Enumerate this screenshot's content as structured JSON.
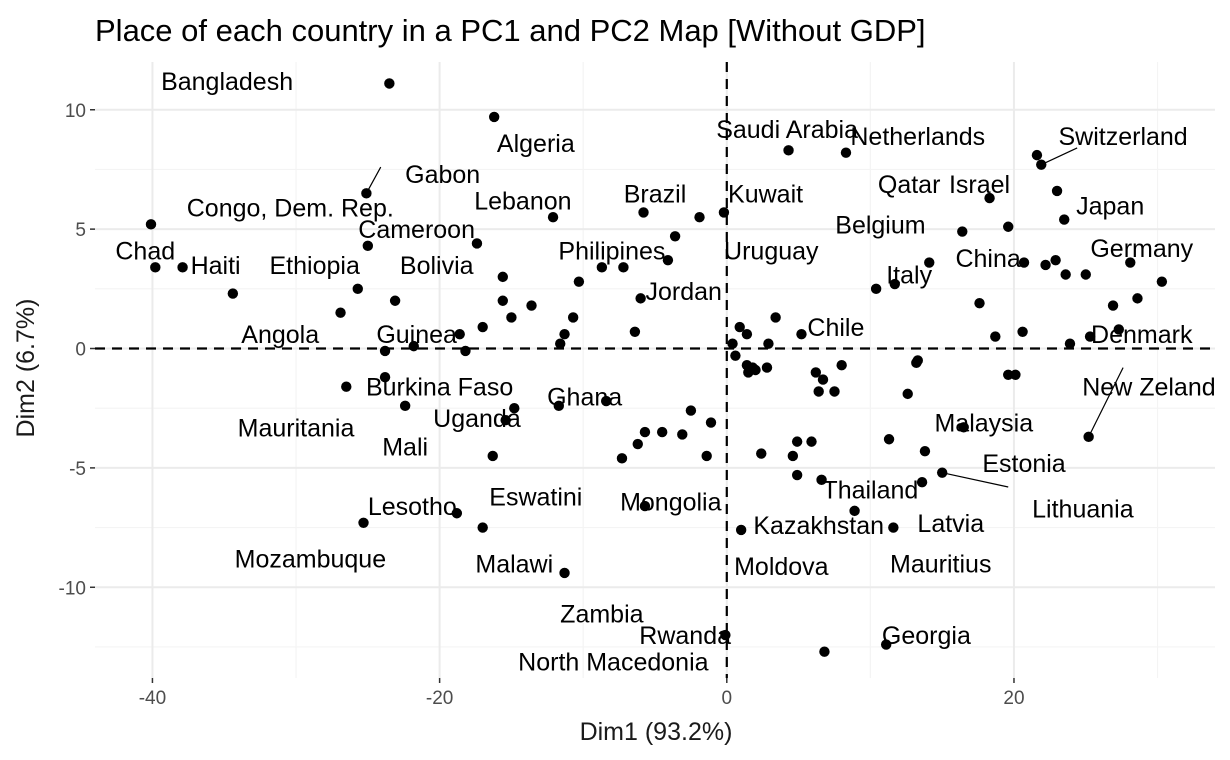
{
  "chart_data": {
    "type": "scatter",
    "title": "Place of each country in a PC1 and PC2 Map [Without GDP]",
    "xlabel": "Dim1 (93.2%)",
    "ylabel": "Dim2 (6.7%)",
    "xlim": [
      -44,
      34
    ],
    "ylim": [
      -13.8,
      12
    ],
    "xticks": [
      -40,
      -20,
      0,
      20
    ],
    "yticks": [
      -10,
      -5,
      0,
      5,
      10
    ],
    "grid": true,
    "reference_lines": {
      "x": 0,
      "y": 0,
      "style": "dashed"
    },
    "labels": [
      {
        "text": "Bangladesh",
        "x": -34.8,
        "y": 11.2,
        "anchor": "middle"
      },
      {
        "text": "Algeria",
        "x": -13.3,
        "y": 8.6,
        "anchor": "middle"
      },
      {
        "text": "Saudi Arabia",
        "x": 4.2,
        "y": 9.2,
        "anchor": "middle"
      },
      {
        "text": "Netherlands",
        "x": 13.3,
        "y": 8.9,
        "anchor": "middle"
      },
      {
        "text": "Switzerland",
        "x": 27.6,
        "y": 8.9,
        "anchor": "middle"
      },
      {
        "text": "Gabon",
        "x": -22.4,
        "y": 7.3,
        "anchor": "start"
      },
      {
        "text": "Qatar",
        "x": 12.7,
        "y": 6.9,
        "anchor": "middle"
      },
      {
        "text": "Israel",
        "x": 17.6,
        "y": 6.9,
        "anchor": "middle"
      },
      {
        "text": "Congo, Dem. Rep.",
        "x": -30.4,
        "y": 5.9,
        "anchor": "middle"
      },
      {
        "text": "Lebanon",
        "x": -14.2,
        "y": 6.2,
        "anchor": "middle"
      },
      {
        "text": "Brazil",
        "x": -5.0,
        "y": 6.5,
        "anchor": "middle"
      },
      {
        "text": "Kuwait",
        "x": 2.7,
        "y": 6.5,
        "anchor": "middle"
      },
      {
        "text": "Japan",
        "x": 26.7,
        "y": 6.0,
        "anchor": "middle"
      },
      {
        "text": "Cameroon",
        "x": -21.6,
        "y": 5.0,
        "anchor": "middle"
      },
      {
        "text": "Belgium",
        "x": 10.7,
        "y": 5.2,
        "anchor": "middle"
      },
      {
        "text": "Chad",
        "x": -40.5,
        "y": 4.1,
        "anchor": "middle"
      },
      {
        "text": "Philipines",
        "x": -8.0,
        "y": 4.1,
        "anchor": "middle"
      },
      {
        "text": "Uruguay",
        "x": 3.1,
        "y": 4.1,
        "anchor": "middle"
      },
      {
        "text": "Germany",
        "x": 28.9,
        "y": 4.2,
        "anchor": "middle"
      },
      {
        "text": "China",
        "x": 18.2,
        "y": 3.8,
        "anchor": "middle"
      },
      {
        "text": "Haiti",
        "x": -35.6,
        "y": 3.5,
        "anchor": "middle"
      },
      {
        "text": "Ethiopia",
        "x": -28.7,
        "y": 3.5,
        "anchor": "middle"
      },
      {
        "text": "Bolivia",
        "x": -20.2,
        "y": 3.5,
        "anchor": "middle"
      },
      {
        "text": "Italy",
        "x": 12.7,
        "y": 3.1,
        "anchor": "middle"
      },
      {
        "text": "Jordan",
        "x": -3.0,
        "y": 2.4,
        "anchor": "middle"
      },
      {
        "text": "Chile",
        "x": 7.6,
        "y": 0.9,
        "anchor": "middle"
      },
      {
        "text": "Angola",
        "x": -31.1,
        "y": 0.6,
        "anchor": "middle"
      },
      {
        "text": "Guinea",
        "x": -21.6,
        "y": 0.6,
        "anchor": "middle"
      },
      {
        "text": "Denmark",
        "x": 28.9,
        "y": 0.6,
        "anchor": "middle"
      },
      {
        "text": "Burkina Faso",
        "x": -20.0,
        "y": -1.6,
        "anchor": "middle"
      },
      {
        "text": "Ghana",
        "x": -9.9,
        "y": -2.0,
        "anchor": "middle"
      },
      {
        "text": "New Zeland",
        "x": 29.4,
        "y": -1.6,
        "anchor": "middle"
      },
      {
        "text": "Mauritania",
        "x": -30.0,
        "y": -3.3,
        "anchor": "middle"
      },
      {
        "text": "Uganda",
        "x": -17.4,
        "y": -2.9,
        "anchor": "middle"
      },
      {
        "text": "Malaysia",
        "x": 17.9,
        "y": -3.1,
        "anchor": "middle"
      },
      {
        "text": "Mali",
        "x": -22.4,
        "y": -4.1,
        "anchor": "middle"
      },
      {
        "text": "Estonia",
        "x": 20.7,
        "y": -4.8,
        "anchor": "middle"
      },
      {
        "text": "Eswatini",
        "x": -13.3,
        "y": -6.2,
        "anchor": "middle"
      },
      {
        "text": "Thailand",
        "x": 10.0,
        "y": -5.9,
        "anchor": "middle"
      },
      {
        "text": "Mongolia",
        "x": -3.9,
        "y": -6.4,
        "anchor": "middle"
      },
      {
        "text": "Lithuania",
        "x": 24.8,
        "y": -6.7,
        "anchor": "middle"
      },
      {
        "text": "Lesotho",
        "x": -21.9,
        "y": -6.6,
        "anchor": "middle"
      },
      {
        "text": "Kazakhstan",
        "x": 6.4,
        "y": -7.4,
        "anchor": "middle"
      },
      {
        "text": "Latvia",
        "x": 15.6,
        "y": -7.3,
        "anchor": "middle"
      },
      {
        "text": "Mozambuque",
        "x": -29.0,
        "y": -8.8,
        "anchor": "middle"
      },
      {
        "text": "Malawi",
        "x": -14.8,
        "y": -9.0,
        "anchor": "middle"
      },
      {
        "text": "Moldova",
        "x": 3.8,
        "y": -9.1,
        "anchor": "middle"
      },
      {
        "text": "Mauritius",
        "x": 14.9,
        "y": -9.0,
        "anchor": "middle"
      },
      {
        "text": "Zambia",
        "x": -8.7,
        "y": -11.1,
        "anchor": "middle"
      },
      {
        "text": "Rwanda",
        "x": -2.9,
        "y": -12.0,
        "anchor": "middle"
      },
      {
        "text": "Georgia",
        "x": 13.9,
        "y": -12.0,
        "anchor": "middle"
      },
      {
        "text": "North Macedonia",
        "x": -7.9,
        "y": -13.1,
        "anchor": "middle"
      }
    ],
    "leaders": [
      {
        "from": [
          -25.1,
          6.5
        ],
        "to": [
          -24.1,
          7.6
        ]
      },
      {
        "from": [
          21.9,
          7.7
        ],
        "to": [
          24.4,
          8.4
        ]
      },
      {
        "from": [
          25.2,
          -3.7
        ],
        "to": [
          27.6,
          -0.8
        ]
      },
      {
        "from": [
          15.0,
          -5.2
        ],
        "to": [
          19.6,
          -5.8
        ]
      }
    ],
    "points": [
      {
        "x": -23.5,
        "y": 11.1
      },
      {
        "x": -16.2,
        "y": 9.7
      },
      {
        "x": 4.3,
        "y": 8.3
      },
      {
        "x": 8.3,
        "y": 8.2
      },
      {
        "x": 21.6,
        "y": 8.1
      },
      {
        "x": 21.9,
        "y": 7.7
      },
      {
        "x": -25.1,
        "y": 6.5
      },
      {
        "x": 23.0,
        "y": 6.6
      },
      {
        "x": 18.3,
        "y": 6.3
      },
      {
        "x": -12.1,
        "y": 5.5
      },
      {
        "x": -5.8,
        "y": 5.7
      },
      {
        "x": -1.9,
        "y": 5.5
      },
      {
        "x": -0.2,
        "y": 5.7
      },
      {
        "x": 23.5,
        "y": 5.4
      },
      {
        "x": 19.6,
        "y": 5.1
      },
      {
        "x": 16.4,
        "y": 4.9
      },
      {
        "x": -40.1,
        "y": 5.2
      },
      {
        "x": -25.0,
        "y": 4.3
      },
      {
        "x": -17.4,
        "y": 4.4
      },
      {
        "x": -3.6,
        "y": 4.7
      },
      {
        "x": -4.1,
        "y": 3.7
      },
      {
        "x": -39.8,
        "y": 3.4
      },
      {
        "x": -37.9,
        "y": 3.4
      },
      {
        "x": -8.7,
        "y": 3.4
      },
      {
        "x": -7.2,
        "y": 3.4
      },
      {
        "x": 14.1,
        "y": 3.6
      },
      {
        "x": 20.7,
        "y": 3.6
      },
      {
        "x": 22.2,
        "y": 3.5
      },
      {
        "x": 22.9,
        "y": 3.7
      },
      {
        "x": 28.1,
        "y": 3.6
      },
      {
        "x": -15.6,
        "y": 3.0
      },
      {
        "x": 23.6,
        "y": 3.1
      },
      {
        "x": 25.0,
        "y": 3.1
      },
      {
        "x": -34.4,
        "y": 2.3
      },
      {
        "x": -25.7,
        "y": 2.5
      },
      {
        "x": -10.3,
        "y": 2.8
      },
      {
        "x": 11.7,
        "y": 2.7
      },
      {
        "x": 10.4,
        "y": 2.5
      },
      {
        "x": 30.3,
        "y": 2.8
      },
      {
        "x": -6.0,
        "y": 2.1
      },
      {
        "x": -23.1,
        "y": 2.0
      },
      {
        "x": -15.6,
        "y": 2.0
      },
      {
        "x": -13.6,
        "y": 1.8
      },
      {
        "x": 17.6,
        "y": 1.9
      },
      {
        "x": 28.6,
        "y": 2.1
      },
      {
        "x": -26.9,
        "y": 1.5
      },
      {
        "x": -15.0,
        "y": 1.3
      },
      {
        "x": -10.7,
        "y": 1.3
      },
      {
        "x": 26.9,
        "y": 1.8
      },
      {
        "x": 3.4,
        "y": 1.3
      },
      {
        "x": -17.0,
        "y": 0.9
      },
      {
        "x": -18.6,
        "y": 0.6
      },
      {
        "x": -11.3,
        "y": 0.6
      },
      {
        "x": -6.4,
        "y": 0.7
      },
      {
        "x": 0.9,
        "y": 0.9
      },
      {
        "x": 1.4,
        "y": 0.6
      },
      {
        "x": 5.2,
        "y": 0.6
      },
      {
        "x": 20.6,
        "y": 0.7
      },
      {
        "x": 27.3,
        "y": 0.8
      },
      {
        "x": -21.8,
        "y": 0.1
      },
      {
        "x": -11.6,
        "y": 0.2
      },
      {
        "x": 0.4,
        "y": 0.2
      },
      {
        "x": 2.9,
        "y": 0.2
      },
      {
        "x": 18.7,
        "y": 0.5
      },
      {
        "x": 23.9,
        "y": 0.2
      },
      {
        "x": 25.3,
        "y": 0.5
      },
      {
        "x": -23.8,
        "y": -0.1
      },
      {
        "x": -18.2,
        "y": -0.1
      },
      {
        "x": 0.6,
        "y": -0.3
      },
      {
        "x": 1.4,
        "y": -0.7
      },
      {
        "x": 2.0,
        "y": -0.9
      },
      {
        "x": 2.8,
        "y": -0.8
      },
      {
        "x": 1.8,
        "y": -0.8
      },
      {
        "x": 1.5,
        "y": -1.0
      },
      {
        "x": 8.0,
        "y": -0.7
      },
      {
        "x": 13.3,
        "y": -0.5
      },
      {
        "x": 13.2,
        "y": -0.6
      },
      {
        "x": 6.2,
        "y": -1.0
      },
      {
        "x": 6.7,
        "y": -1.3
      },
      {
        "x": 19.6,
        "y": -1.1
      },
      {
        "x": 20.1,
        "y": -1.1
      },
      {
        "x": -26.5,
        "y": -1.6
      },
      {
        "x": -23.8,
        "y": -1.2
      },
      {
        "x": 6.4,
        "y": -1.8
      },
      {
        "x": 7.5,
        "y": -1.8
      },
      {
        "x": 12.6,
        "y": -1.9
      },
      {
        "x": -22.4,
        "y": -2.4
      },
      {
        "x": -11.7,
        "y": -2.4
      },
      {
        "x": -8.4,
        "y": -2.2
      },
      {
        "x": -14.8,
        "y": -2.5
      },
      {
        "x": -15.4,
        "y": -3.0
      },
      {
        "x": -2.5,
        "y": -2.6
      },
      {
        "x": -1.1,
        "y": -3.1
      },
      {
        "x": 16.5,
        "y": -3.3
      },
      {
        "x": -5.7,
        "y": -3.5
      },
      {
        "x": -4.5,
        "y": -3.5
      },
      {
        "x": -3.1,
        "y": -3.6
      },
      {
        "x": -6.2,
        "y": -4.0
      },
      {
        "x": 4.9,
        "y": -3.9
      },
      {
        "x": 5.9,
        "y": -3.9
      },
      {
        "x": 11.3,
        "y": -3.8
      },
      {
        "x": 25.2,
        "y": -3.7
      },
      {
        "x": -16.3,
        "y": -4.5
      },
      {
        "x": -7.3,
        "y": -4.6
      },
      {
        "x": -1.4,
        "y": -4.5
      },
      {
        "x": 2.4,
        "y": -4.4
      },
      {
        "x": 4.6,
        "y": -4.5
      },
      {
        "x": 13.8,
        "y": -4.3
      },
      {
        "x": 4.9,
        "y": -5.3
      },
      {
        "x": 6.6,
        "y": -5.5
      },
      {
        "x": 15.0,
        "y": -5.2
      },
      {
        "x": 13.6,
        "y": -5.6
      },
      {
        "x": -5.7,
        "y": -6.6
      },
      {
        "x": -18.8,
        "y": -6.9
      },
      {
        "x": 8.9,
        "y": -6.8
      },
      {
        "x": -25.3,
        "y": -7.3
      },
      {
        "x": -17.0,
        "y": -7.5
      },
      {
        "x": 1.0,
        "y": -7.6
      },
      {
        "x": 11.6,
        "y": -7.5
      },
      {
        "x": -11.3,
        "y": -9.4
      },
      {
        "x": -0.1,
        "y": -12.0
      },
      {
        "x": 6.8,
        "y": -12.7
      },
      {
        "x": 11.1,
        "y": -12.4
      }
    ]
  }
}
